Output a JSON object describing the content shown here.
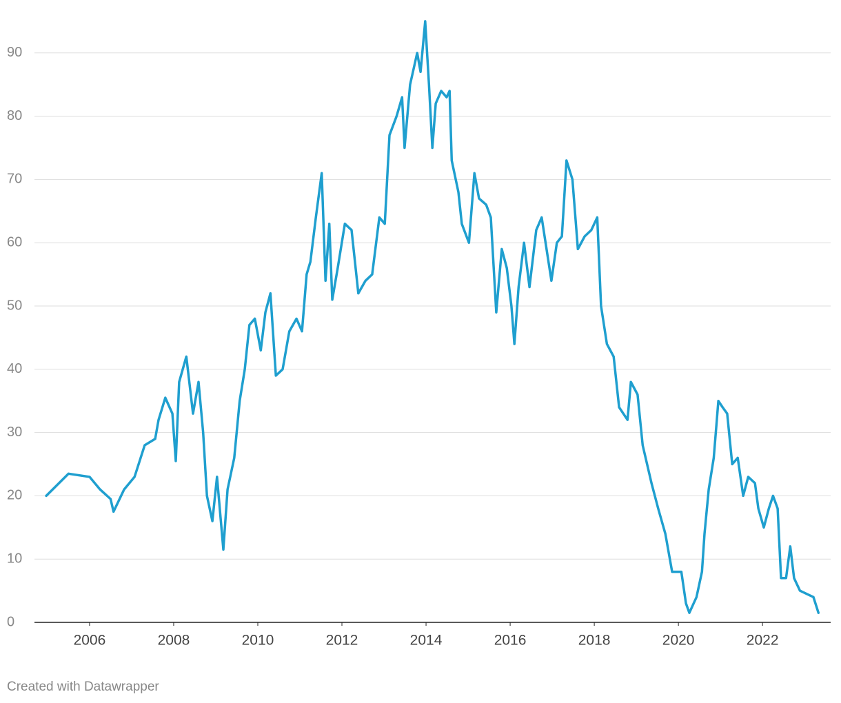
{
  "chart_data": {
    "type": "line",
    "x": [
      2004.97,
      2005.5,
      2006.0,
      2006.25,
      2006.5,
      2006.57,
      2006.82,
      2007.07,
      2007.31,
      2007.56,
      2007.64,
      2007.8,
      2007.97,
      2008.05,
      2008.13,
      2008.3,
      2008.46,
      2008.59,
      2008.7,
      2008.79,
      2008.92,
      2009.03,
      2009.18,
      2009.28,
      2009.44,
      2009.57,
      2009.69,
      2009.8,
      2009.93,
      2010.07,
      2010.18,
      2010.3,
      2010.43,
      2010.59,
      2010.75,
      2010.92,
      2011.05,
      2011.16,
      2011.25,
      2011.38,
      2011.52,
      2011.61,
      2011.7,
      2011.77,
      2011.9,
      2012.07,
      2012.23,
      2012.39,
      2012.56,
      2012.72,
      2012.89,
      2013.02,
      2013.13,
      2013.3,
      2013.43,
      2013.49,
      2013.62,
      2013.79,
      2013.87,
      2013.98,
      2014.07,
      2014.15,
      2014.23,
      2014.36,
      2014.49,
      2014.56,
      2014.61,
      2014.77,
      2014.85,
      2015.02,
      2015.15,
      2015.26,
      2015.43,
      2015.54,
      2015.67,
      2015.8,
      2015.92,
      2016.03,
      2016.1,
      2016.2,
      2016.33,
      2016.46,
      2016.62,
      2016.75,
      2016.98,
      2017.11,
      2017.23,
      2017.34,
      2017.48,
      2017.61,
      2017.77,
      2017.93,
      2018.07,
      2018.16,
      2018.3,
      2018.46,
      2018.59,
      2018.79,
      2018.87,
      2019.03,
      2019.15,
      2019.36,
      2019.52,
      2019.69,
      2019.85,
      2020.07,
      2020.18,
      2020.26,
      2020.43,
      2020.56,
      2020.62,
      2020.72,
      2020.84,
      2020.95,
      2021.05,
      2021.16,
      2021.28,
      2021.41,
      2021.54,
      2021.66,
      2021.82,
      2021.9,
      2022.03,
      2022.15,
      2022.25,
      2022.36,
      2022.44,
      2022.56,
      2022.66,
      2022.75,
      2022.89,
      2023.05,
      2023.21,
      2023.33
    ],
    "series": [
      {
        "color": "#1f9fcf",
        "values": [
          20,
          23.5,
          23,
          21,
          19.5,
          17.5,
          21,
          23,
          28,
          29,
          32,
          35.5,
          33,
          25.5,
          38,
          42,
          33,
          38,
          30,
          20,
          16,
          23,
          11.5,
          21,
          26,
          35,
          40,
          47,
          48,
          43,
          49,
          52,
          39,
          40,
          46,
          48,
          46,
          55,
          57,
          64,
          71,
          54,
          63,
          51,
          56,
          63,
          62,
          52,
          54,
          55,
          64,
          63,
          77,
          80,
          83,
          75,
          85,
          90,
          87,
          95,
          85,
          75,
          82,
          84,
          83,
          84,
          73,
          68,
          63,
          60,
          71,
          67,
          66,
          64,
          49,
          59,
          56,
          50,
          44,
          53,
          60,
          53,
          62,
          64,
          54,
          60,
          61,
          73,
          70,
          59,
          61,
          62,
          64,
          50,
          44,
          42,
          34,
          32,
          38,
          36,
          28,
          22,
          18,
          14,
          8,
          8,
          3,
          1.5,
          4,
          8,
          14,
          21,
          26,
          35,
          34,
          33,
          25,
          26,
          20,
          23,
          22,
          18,
          15,
          18,
          20,
          18,
          7,
          7,
          12,
          7,
          5,
          4.5,
          4,
          1.5
        ]
      }
    ],
    "xlim": [
      2004.69,
      2023.62
    ],
    "xticks": [
      2006,
      2008,
      2010,
      2012,
      2014,
      2016,
      2018,
      2020,
      2022
    ],
    "ylim": [
      0,
      96
    ],
    "yticks": [
      0,
      10,
      20,
      30,
      40,
      50,
      60,
      70,
      80,
      90
    ],
    "grid": true,
    "credit": "Created with Datawrapper"
  }
}
